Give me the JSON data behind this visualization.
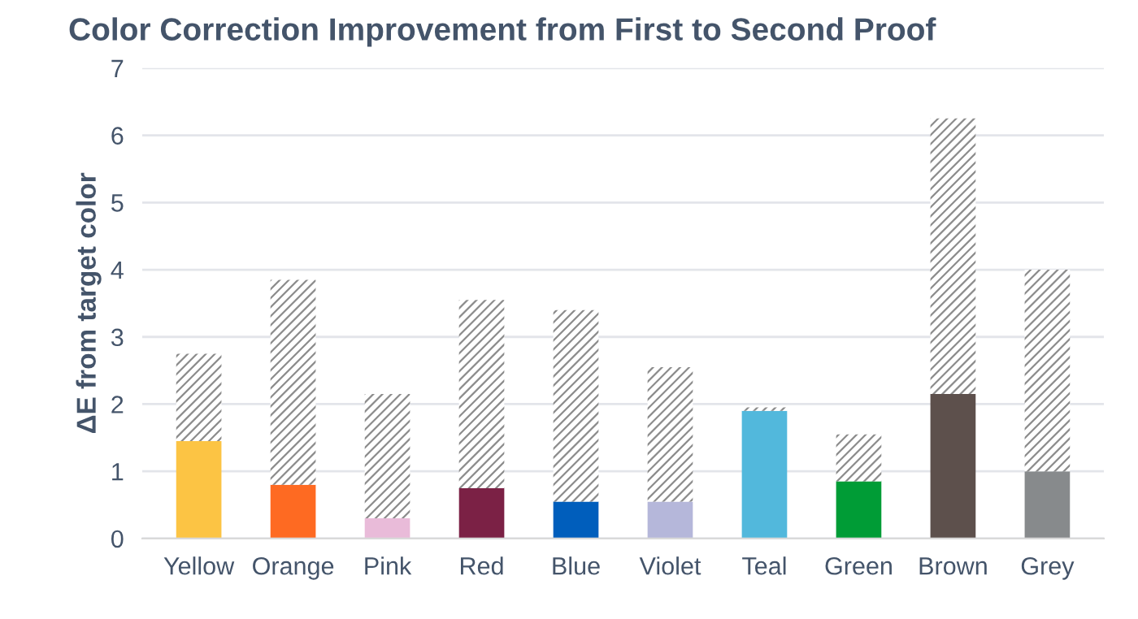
{
  "chart_data": {
    "type": "bar",
    "title": "Color Correction Improvement from First to Second Proof",
    "ylabel": "ΔE from target color",
    "categories": [
      "Yellow",
      "Orange",
      "Pink",
      "Red",
      "Blue",
      "Violet",
      "Teal",
      "Green",
      "Brown",
      "Grey"
    ],
    "stacked": true,
    "series": [
      {
        "colors": [
          "#fcc444",
          "#fe6a22",
          "#e9bbd9",
          "#7b2145",
          "#005ebc",
          "#b5b7da",
          "#52b8dc",
          "#009c36",
          "#5d504c",
          "#878a8c"
        ],
        "values": [
          1.45,
          0.8,
          0.3,
          0.75,
          0.55,
          0.55,
          1.9,
          0.85,
          2.15,
          1.0
        ]
      },
      {
        "color": "#8c8c8c",
        "values": [
          1.3,
          3.05,
          1.85,
          2.8,
          2.85,
          2.0,
          0.05,
          0.7,
          4.1,
          3.0
        ]
      }
    ],
    "ylim": [
      0,
      7
    ],
    "yticks": [
      0,
      1,
      2,
      3,
      4,
      5,
      6,
      7
    ],
    "grid": "y",
    "legend": false
  }
}
